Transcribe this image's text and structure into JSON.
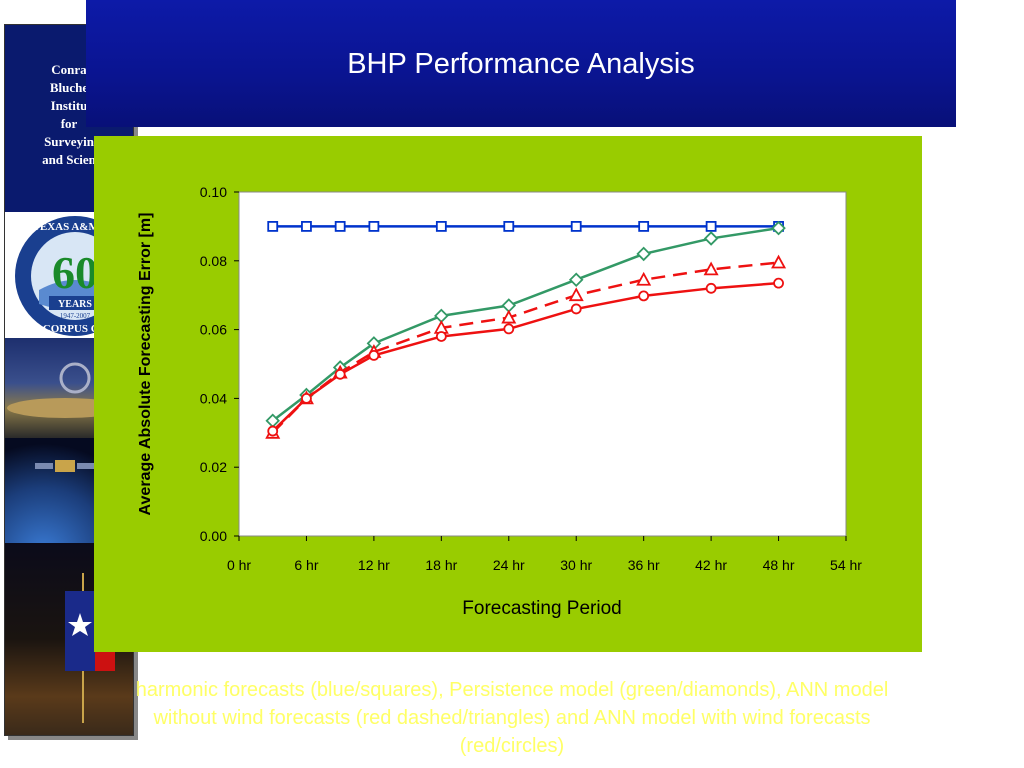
{
  "header": {
    "title": "BHP Performance Analysis"
  },
  "sidebar": {
    "lines": [
      "Conra",
      "Bluche",
      "Institu",
      "for",
      "Surveyin",
      "and Scien"
    ],
    "seal_text_top": "TEXAS A&M UN",
    "seal_number": "60",
    "seal_years": "YEARS",
    "seal_dates": "1947-2007",
    "seal_text_bottom": "CORPUS CH"
  },
  "caption": {
    "lines": [
      "harmonic forecasts (blue/squares), Persistence model (green/diamonds), ANN model",
      "without wind forecasts (red dashed/triangles) and ANN model with wind forecasts",
      "(red/circles)"
    ]
  },
  "chart_data": {
    "type": "line",
    "title": "",
    "xlabel": "Forecasting Period",
    "ylabel": "Average Absolute Forecasting Error [m]",
    "xlim": [
      0,
      54
    ],
    "ylim": [
      0,
      0.1
    ],
    "x_ticks": [
      0,
      6,
      12,
      18,
      24,
      30,
      36,
      42,
      48,
      54
    ],
    "x_tick_labels": [
      "0 hr",
      "6 hr",
      "12 hr",
      "18 hr",
      "24 hr",
      "30 hr",
      "36 hr",
      "42 hr",
      "48 hr",
      "54 hr"
    ],
    "y_ticks": [
      0,
      0.02,
      0.04,
      0.06,
      0.08,
      0.1
    ],
    "y_tick_labels": [
      "0.00",
      "0.02",
      "0.04",
      "0.06",
      "0.08",
      "0.10"
    ],
    "grid": false,
    "legend": "none",
    "series": [
      {
        "color": "#0033cc",
        "marker": "square",
        "dash": false,
        "x": [
          3,
          6,
          9,
          12,
          18,
          24,
          30,
          36,
          42,
          48
        ],
        "y": [
          0.09,
          0.09,
          0.09,
          0.09,
          0.09,
          0.09,
          0.09,
          0.09,
          0.09,
          0.09
        ]
      },
      {
        "color": "#339966",
        "marker": "diamond",
        "dash": false,
        "x": [
          3,
          6,
          9,
          12,
          18,
          24,
          30,
          36,
          42,
          48
        ],
        "y": [
          0.0335,
          0.041,
          0.049,
          0.056,
          0.064,
          0.067,
          0.0745,
          0.082,
          0.0865,
          0.0895
        ]
      },
      {
        "color": "#ee1111",
        "marker": "triangle",
        "dash": true,
        "x": [
          3,
          6,
          9,
          12,
          18,
          24,
          30,
          36,
          42,
          48
        ],
        "y": [
          0.03,
          0.04,
          0.0475,
          0.0535,
          0.0605,
          0.0635,
          0.07,
          0.0745,
          0.0775,
          0.0795
        ]
      },
      {
        "color": "#ee1111",
        "marker": "circle",
        "dash": false,
        "x": [
          3,
          6,
          9,
          12,
          18,
          24,
          30,
          36,
          42,
          48
        ],
        "y": [
          0.0305,
          0.04,
          0.047,
          0.0525,
          0.058,
          0.0602,
          0.066,
          0.0698,
          0.072,
          0.0735
        ]
      }
    ]
  }
}
